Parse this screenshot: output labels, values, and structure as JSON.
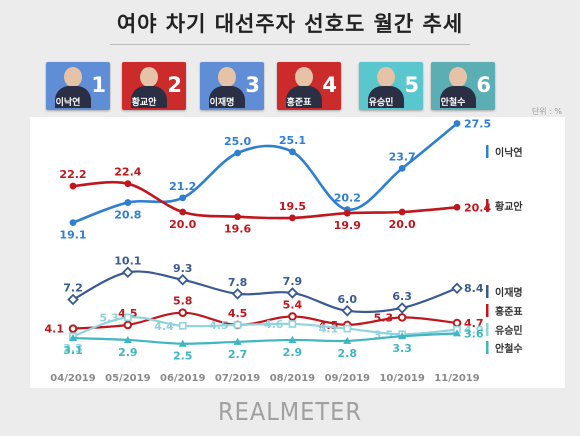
{
  "title": "여야 차기 대선주자 선호도 월간 추세",
  "unit": "단위 : %",
  "logo_text": "REALMETER",
  "candidates": [
    {
      "name": "이낙연",
      "num": "1",
      "bg": "#5f8ed6"
    },
    {
      "name": "황교안",
      "num": "2",
      "bg": "#cc2b2b"
    },
    {
      "name": "이재명",
      "num": "3",
      "bg": "#5f8ed6"
    },
    {
      "name": "홍준표",
      "num": "4",
      "bg": "#cc2b2b"
    },
    {
      "name": "유승민",
      "num": "5",
      "bg": "#5ac7cf"
    },
    {
      "name": "안철수",
      "num": "6",
      "bg": "#5aaeb4"
    }
  ],
  "chart_data": {
    "type": "line",
    "title": "여야 차기 대선주자 선호도 월간 추세",
    "unit": "단위 : %",
    "categories": [
      "04/2019",
      "05/2019",
      "06/2019",
      "07/2019",
      "08/2019",
      "09/2019",
      "10/2019",
      "11/2019"
    ],
    "legend_position": "right",
    "series": [
      {
        "name": "이낙연",
        "color": "#2f7fd0",
        "marker": "circle",
        "values": [
          19.1,
          20.8,
          21.2,
          25.0,
          25.1,
          20.2,
          23.7,
          27.5
        ],
        "labels": [
          "19.1",
          "20.8",
          "21.2",
          "25.0",
          "25.1",
          "20.2",
          "23.7",
          "27.5"
        ]
      },
      {
        "name": "황교안",
        "color": "#c0161d",
        "marker": "circle",
        "values": [
          22.2,
          22.4,
          20.0,
          19.6,
          19.5,
          19.9,
          20.0,
          20.4
        ],
        "labels": [
          "22.2",
          "22.4",
          "20.0",
          "19.6",
          "19.5",
          "19.9",
          "20.0",
          "20.4"
        ]
      },
      {
        "name": "이재명",
        "color": "#3a5a92",
        "marker": "diamond",
        "values": [
          7.2,
          10.1,
          9.3,
          7.8,
          7.9,
          6.0,
          6.3,
          8.4
        ],
        "labels": [
          "7.2",
          "10.1",
          "9.3",
          "7.8",
          "7.9",
          "6.0",
          "6.3",
          "8.4"
        ]
      },
      {
        "name": "홍준표",
        "color": "#c0161d",
        "marker": "circle-open",
        "values": [
          4.1,
          4.5,
          5.8,
          4.5,
          5.4,
          4.5,
          5.3,
          4.7
        ],
        "labels": [
          "4.1",
          "4.5",
          "5.8",
          "4.5",
          "5.4",
          "4.5",
          "5.3",
          "4.7"
        ]
      },
      {
        "name": "유승민",
        "color": "#8fd3df",
        "marker": "square",
        "values": [
          3.3,
          5.3,
          4.4,
          4.5,
          4.6,
          4.1,
          3.5,
          4.0
        ],
        "labels": [
          "3.3",
          "5.3",
          "4.4",
          "4.5",
          "4.6",
          "4.1",
          "3.5",
          "4.0"
        ]
      },
      {
        "name": "안철수",
        "color": "#3fb6c0",
        "marker": "triangle",
        "values": [
          3.1,
          2.9,
          2.5,
          2.7,
          2.9,
          2.8,
          3.3,
          3.6
        ],
        "labels": [
          "3.1",
          "2.9",
          "2.5",
          "2.7",
          "2.9",
          "2.8",
          "3.3",
          "3.6"
        ]
      }
    ]
  }
}
